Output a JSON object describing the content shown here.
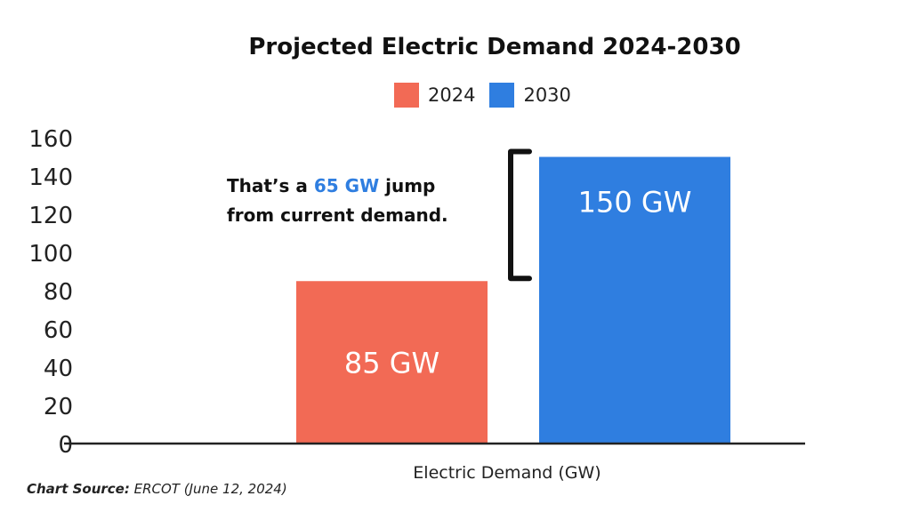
{
  "chart_data": {
    "type": "bar",
    "title": "Projected Electric Demand 2024-2030",
    "categories": [
      "Electric Demand (GW)"
    ],
    "xlabel": "Electric Demand (GW)",
    "ylabel": "",
    "ylim": [
      0,
      160
    ],
    "yticks": [
      "0",
      "20",
      "40",
      "60",
      "80",
      "100",
      "120",
      "140",
      "160"
    ],
    "series": [
      {
        "name": "2024",
        "values": [
          85
        ],
        "label": "85 GW",
        "color": "#F26A55"
      },
      {
        "name": "2030",
        "values": [
          150
        ],
        "label": "150 GW",
        "color": "#2F7EE0"
      }
    ],
    "legend": "top",
    "grid": false,
    "annotation": {
      "before": "That’s a ",
      "highlight": "65 GW",
      "after": " jump",
      "line2": "from current demand.",
      "highlight_color": "#2F7EE0"
    }
  },
  "source": {
    "label": "Chart Source:",
    "text": " ERCOT (June 12, 2024)"
  }
}
